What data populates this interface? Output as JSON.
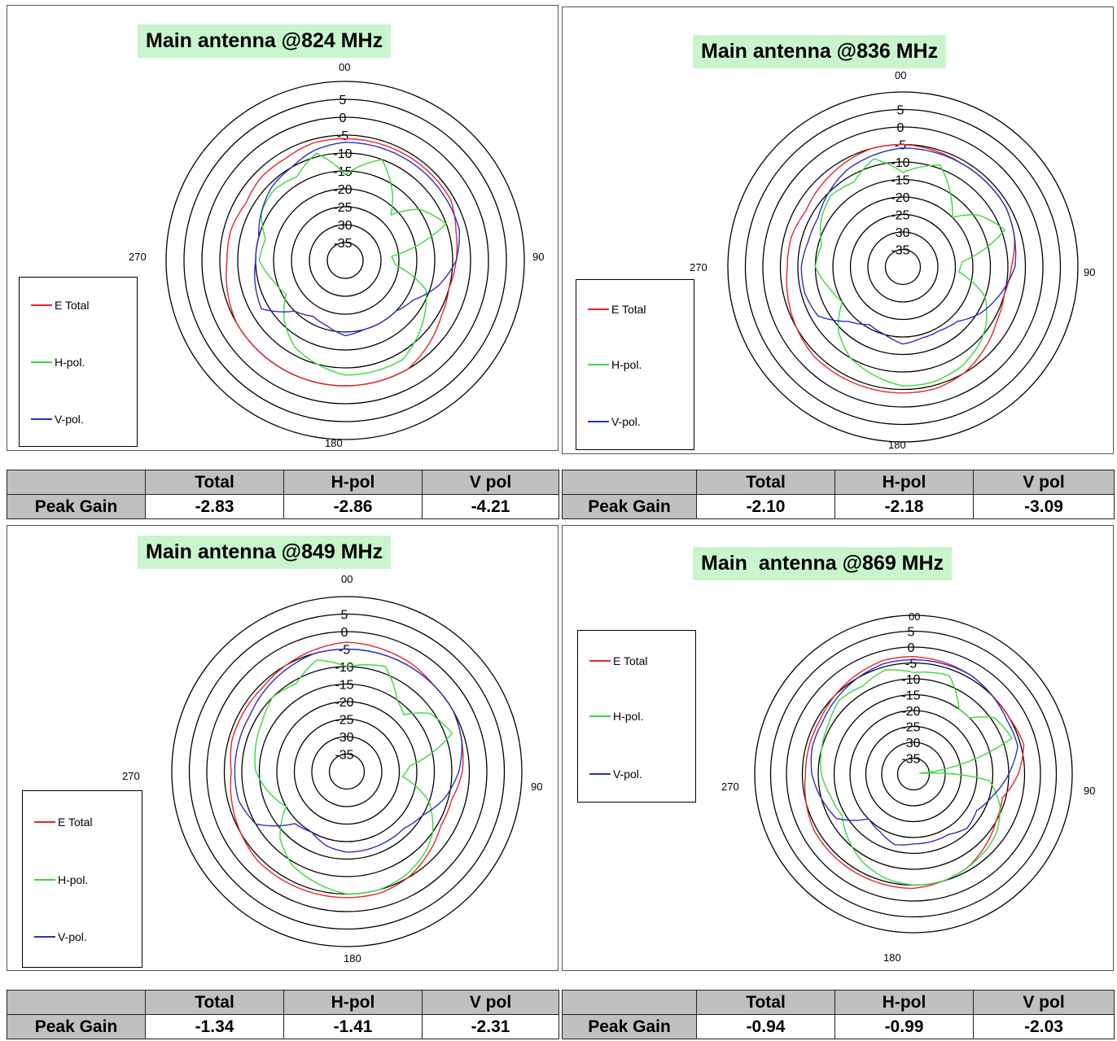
{
  "colors": {
    "e_total": "#e8242a",
    "h_pol": "#39d83d",
    "v_pol": "#2a2fc4",
    "title_bg": "#c9f5cd",
    "table_header_bg": "#c0c0c0"
  },
  "legend": {
    "e_total": "E Total",
    "h_pol": "H-pol.",
    "v_pol": "V-pol."
  },
  "directions": {
    "top": "00",
    "right": "90",
    "bottom": "180",
    "left": "270"
  },
  "table": {
    "col_total": "Total",
    "col_hpol": "H-pol",
    "col_vpol": "V pol",
    "row_label": "Peak Gain"
  },
  "charts": [
    {
      "title": "Main antenna @824 MHz",
      "peak_gain": {
        "total": "-2.83",
        "hpol": "-2.86",
        "vpol": "-4.21"
      }
    },
    {
      "title": "Main antenna @836 MHz",
      "peak_gain": {
        "total": "-2.10",
        "hpol": "-2.18",
        "vpol": "-3.09"
      }
    },
    {
      "title": "Main antenna @849 MHz",
      "peak_gain": {
        "total": "-1.34",
        "hpol": "-1.41",
        "vpol": "-2.31"
      }
    },
    {
      "title": "Main  antenna @869 MHz",
      "peak_gain": {
        "total": "-0.94",
        "hpol": "-0.99",
        "vpol": "-2.03"
      }
    }
  ],
  "chart_data": [
    {
      "type": "polar-line",
      "title": "Main antenna @824 MHz",
      "radial_ticks": [
        "5",
        "0",
        "-5",
        "-10",
        "-15",
        "-20",
        "-25",
        "-30",
        "-35"
      ],
      "angle_labels": [
        "00",
        "90",
        "180",
        "270"
      ],
      "rlim": [
        -40,
        10
      ],
      "grid": true,
      "legend_position": "bottom-left",
      "series": [
        {
          "name": "E Total",
          "angles": [
            0,
            30,
            45,
            60,
            75,
            90,
            105,
            120,
            135,
            150,
            165,
            180,
            195,
            210,
            225,
            240,
            255,
            270,
            285,
            300,
            315,
            330,
            345
          ],
          "values": [
            -6,
            -6,
            -6,
            -6,
            -8,
            -9,
            -10,
            -9,
            -7,
            -5,
            -5,
            -5,
            -5,
            -5,
            -5,
            -5,
            -6,
            -7,
            -7,
            -8,
            -7,
            -7,
            -6
          ]
        },
        {
          "name": "H-pol.",
          "angles": [
            0,
            20,
            35,
            45,
            55,
            70,
            85,
            95,
            110,
            125,
            135,
            150,
            165,
            180,
            195,
            210,
            225,
            240,
            255,
            270,
            285,
            300,
            315,
            330,
            345
          ],
          "values": [
            -16,
            -10,
            -17,
            -22,
            -15,
            -10,
            -27,
            -26,
            -16,
            -13,
            -11,
            -8,
            -8,
            -8,
            -10,
            -12,
            -16,
            -21,
            -19,
            -16,
            -17,
            -13,
            -12,
            -13,
            -9
          ]
        },
        {
          "name": "V-pol.",
          "angles": [
            0,
            30,
            45,
            60,
            75,
            90,
            105,
            120,
            135,
            150,
            165,
            180,
            195,
            210,
            225,
            240,
            255,
            270,
            285,
            300,
            315,
            330,
            345
          ],
          "values": [
            -7,
            -7,
            -7,
            -7,
            -7,
            -9,
            -13,
            -18,
            -20,
            -20,
            -20,
            -19,
            -21,
            -22,
            -20,
            -13,
            -14,
            -15,
            -15,
            -13,
            -11,
            -10,
            -8
          ]
        }
      ]
    },
    {
      "type": "polar-line",
      "title": "Main antenna @836 MHz",
      "radial_ticks": [
        "5",
        "0",
        "-5",
        "-10",
        "-15",
        "-20",
        "-25",
        "-30",
        "-35"
      ],
      "angle_labels": [
        "00",
        "90",
        "180",
        "270"
      ],
      "rlim": [
        -40,
        10
      ],
      "grid": true,
      "legend_position": "bottom-left",
      "series": [
        {
          "name": "E Total",
          "angles": [
            0,
            30,
            45,
            60,
            75,
            90,
            105,
            120,
            135,
            150,
            165,
            180,
            195,
            210,
            225,
            240,
            255,
            270,
            285,
            300,
            315,
            330,
            345
          ],
          "values": [
            -5,
            -6,
            -6,
            -6,
            -7,
            -9,
            -10,
            -9,
            -7,
            -5,
            -4,
            -4,
            -4,
            -4,
            -4,
            -5,
            -6,
            -7,
            -7,
            -8,
            -7,
            -6,
            -5
          ]
        },
        {
          "name": "H-pol.",
          "angles": [
            0,
            20,
            35,
            45,
            55,
            70,
            85,
            95,
            110,
            125,
            135,
            150,
            165,
            180,
            195,
            210,
            225,
            240,
            255,
            270,
            285,
            300,
            315,
            330,
            345
          ],
          "values": [
            -13,
            -9,
            -16,
            -20,
            -14,
            -9,
            -23,
            -24,
            -15,
            -11,
            -9,
            -7,
            -6,
            -6,
            -8,
            -10,
            -14,
            -20,
            -18,
            -15,
            -16,
            -13,
            -11,
            -12,
            -8
          ]
        },
        {
          "name": "V-pol.",
          "angles": [
            0,
            30,
            45,
            60,
            75,
            90,
            105,
            120,
            135,
            150,
            165,
            180,
            195,
            210,
            225,
            240,
            255,
            270,
            285,
            300,
            315,
            330,
            345
          ],
          "values": [
            -6,
            -6,
            -6,
            -6,
            -7,
            -8,
            -11,
            -14,
            -18,
            -19,
            -19,
            -18,
            -20,
            -21,
            -18,
            -12,
            -11,
            -11,
            -12,
            -12,
            -10,
            -8,
            -7
          ]
        }
      ]
    },
    {
      "type": "polar-line",
      "title": "Main antenna @849 MHz",
      "radial_ticks": [
        "5",
        "0",
        "-5",
        "-10",
        "-15",
        "-20",
        "-25",
        "-30",
        "-35"
      ],
      "angle_labels": [
        "00",
        "90",
        "180",
        "270"
      ],
      "rlim": [
        -40,
        10
      ],
      "grid": true,
      "legend_position": "bottom-left",
      "series": [
        {
          "name": "E Total",
          "angles": [
            0,
            30,
            45,
            60,
            75,
            90,
            105,
            120,
            135,
            150,
            165,
            180,
            195,
            210,
            225,
            240,
            255,
            270,
            285,
            300,
            315,
            330,
            345
          ],
          "values": [
            -3,
            -4,
            -5,
            -5,
            -6,
            -7,
            -9,
            -9,
            -7,
            -5,
            -4,
            -4,
            -4,
            -4,
            -4,
            -5,
            -6,
            -7,
            -6,
            -6,
            -6,
            -5,
            -4
          ]
        },
        {
          "name": "H-pol.",
          "angles": [
            0,
            20,
            35,
            45,
            55,
            70,
            85,
            95,
            110,
            125,
            135,
            150,
            165,
            180,
            195,
            210,
            225,
            240,
            255,
            270,
            285,
            300,
            315,
            330,
            345
          ],
          "values": [
            -10,
            -8,
            -15,
            -17,
            -11,
            -8,
            -22,
            -24,
            -15,
            -10,
            -8,
            -6,
            -5,
            -5,
            -7,
            -9,
            -13,
            -20,
            -17,
            -14,
            -13,
            -12,
            -10,
            -11,
            -7
          ]
        },
        {
          "name": "V-pol.",
          "angles": [
            0,
            30,
            45,
            60,
            75,
            90,
            105,
            120,
            135,
            150,
            165,
            180,
            195,
            210,
            225,
            240,
            255,
            270,
            285,
            300,
            315,
            330,
            345
          ],
          "values": [
            -5,
            -5,
            -5,
            -5,
            -6,
            -8,
            -11,
            -15,
            -17,
            -17,
            -17,
            -17,
            -18,
            -20,
            -19,
            -10,
            -8,
            -8,
            -8,
            -8,
            -7,
            -6,
            -5
          ]
        }
      ]
    },
    {
      "type": "polar-line",
      "title": "Main  antenna @869 MHz",
      "radial_ticks": [
        "5",
        "0",
        "-5",
        "-10",
        "-15",
        "-20",
        "-25",
        "-30",
        "-35"
      ],
      "angle_labels": [
        "00",
        "90",
        "180",
        "270"
      ],
      "rlim": [
        -40,
        10
      ],
      "grid": true,
      "legend_position": "top-left",
      "series": [
        {
          "name": "E Total",
          "angles": [
            0,
            30,
            45,
            60,
            75,
            90,
            105,
            120,
            135,
            150,
            165,
            180,
            195,
            210,
            225,
            240,
            255,
            270,
            285,
            300,
            315,
            330,
            345
          ],
          "values": [
            -3,
            -4,
            -5,
            -5,
            -4,
            -7,
            -11,
            -10,
            -8,
            -6,
            -5,
            -4,
            -4,
            -4,
            -4,
            -4,
            -5,
            -6,
            -6,
            -6,
            -5,
            -4,
            -3
          ]
        },
        {
          "name": "H-pol.",
          "angles": [
            0,
            20,
            35,
            45,
            55,
            70,
            85,
            95,
            110,
            125,
            135,
            150,
            165,
            180,
            195,
            210,
            225,
            240,
            255,
            270,
            285,
            300,
            315,
            330,
            345
          ],
          "values": [
            -8,
            -7,
            -15,
            -15,
            -9,
            -7,
            -38,
            -16,
            -11,
            -8,
            -7,
            -6,
            -5,
            -5,
            -6,
            -8,
            -11,
            -14,
            -13,
            -11,
            -10,
            -9,
            -7,
            -8,
            -6
          ]
        },
        {
          "name": "V-pol.",
          "angles": [
            0,
            30,
            45,
            60,
            75,
            90,
            105,
            120,
            135,
            150,
            165,
            180,
            195,
            210,
            225,
            240,
            255,
            270,
            285,
            300,
            315,
            330,
            345
          ],
          "values": [
            -4,
            -4,
            -5,
            -6,
            -6,
            -10,
            -14,
            -17,
            -16,
            -18,
            -18,
            -18,
            -17,
            -19,
            -20,
            -12,
            -10,
            -8,
            -7,
            -7,
            -6,
            -5,
            -4
          ]
        }
      ]
    }
  ]
}
